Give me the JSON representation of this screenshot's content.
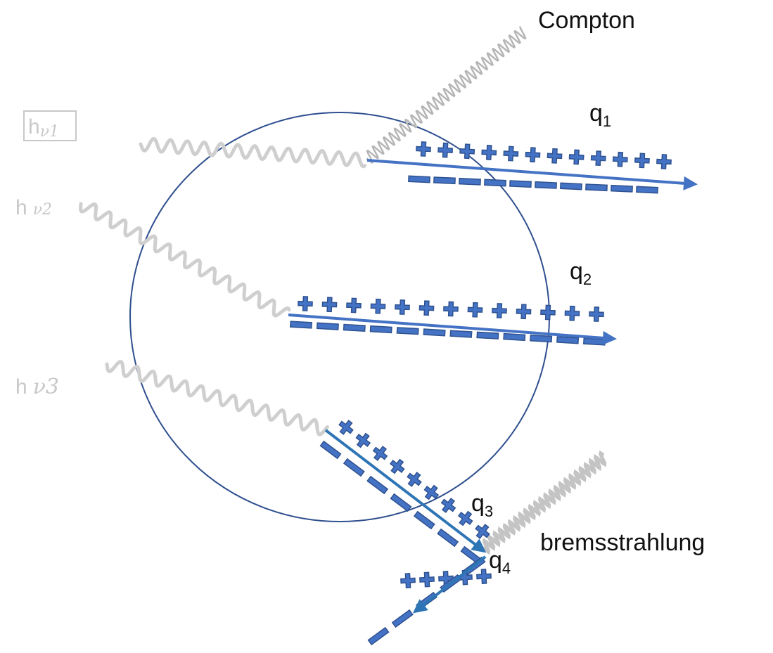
{
  "labels": {
    "compton": "Compton",
    "bremsstrahlung": "bremsstrahlung"
  },
  "tracks": [
    {
      "symbol": "q",
      "index": "1"
    },
    {
      "symbol": "q",
      "index": "2"
    },
    {
      "symbol": "q",
      "index": "3"
    },
    {
      "symbol": "q",
      "index": "4"
    }
  ],
  "photons": [
    {
      "symbol": "h",
      "nu": "ν1"
    },
    {
      "symbol": "h",
      "nu": "ν2"
    },
    {
      "symbol": "h",
      "nu": "ν3"
    }
  ]
}
